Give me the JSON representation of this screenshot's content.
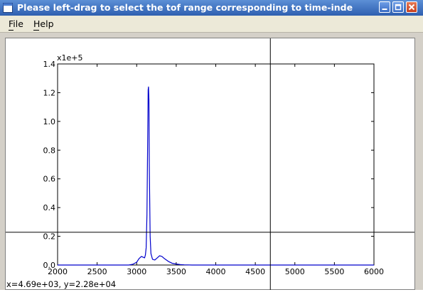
{
  "window": {
    "title": "Please left-drag to select the tof range corresponding to time-inde",
    "colors": {
      "titlebar": "#2e5fb0",
      "close": "#d9532c",
      "menubar": "#ece9d8"
    }
  },
  "menu": {
    "file": "File",
    "help": "Help"
  },
  "status": {
    "coords": "x=4.69e+03, y=2.28e+04"
  },
  "chart_data": {
    "type": "line",
    "title": "",
    "xlabel": "",
    "ylabel": "",
    "y_multiplier_label": "x1e+5",
    "xlim": [
      2000,
      6000
    ],
    "ylim": [
      0.0,
      1.4
    ],
    "xticks": [
      "2000",
      "2500",
      "3000",
      "3500",
      "4000",
      "4500",
      "5000",
      "5500",
      "6000"
    ],
    "yticks": [
      "0.0",
      "0.2",
      "0.4",
      "0.6",
      "0.8",
      "1.0",
      "1.2",
      "1.4"
    ],
    "series": [
      {
        "color": "#0000cc",
        "x": [
          2000,
          2900,
          2950,
          3000,
          3030,
          3060,
          3080,
          3100,
          3110,
          3120,
          3130,
          3140,
          3145,
          3150,
          3155,
          3160,
          3170,
          3180,
          3200,
          3230,
          3260,
          3290,
          3320,
          3350,
          3400,
          3450,
          3500,
          3550,
          3600,
          3700,
          6000
        ],
        "y": [
          0.0,
          0.0,
          0.005,
          0.02,
          0.045,
          0.06,
          0.055,
          0.05,
          0.07,
          0.12,
          0.35,
          0.9,
          1.22,
          1.24,
          1.15,
          0.7,
          0.2,
          0.08,
          0.04,
          0.035,
          0.05,
          0.065,
          0.06,
          0.045,
          0.025,
          0.012,
          0.007,
          0.003,
          0.0015,
          0.0,
          0.0
        ]
      }
    ],
    "crosshair": {
      "x": 4690,
      "y": 0.228
    },
    "grid": false
  }
}
